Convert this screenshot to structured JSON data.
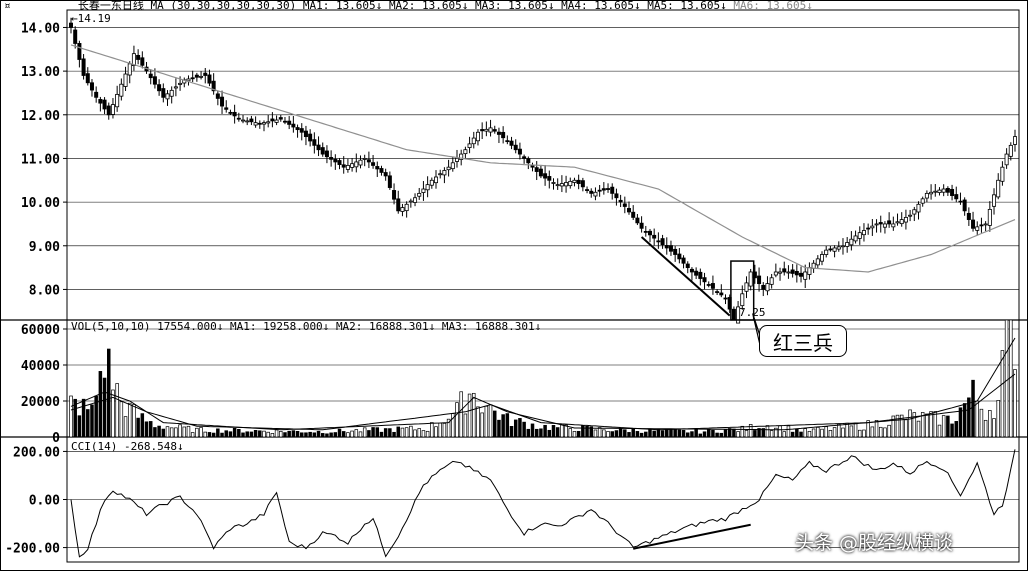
{
  "price_header": {
    "title_symbol": "¤",
    "name": "长春一东",
    "period": "日线",
    "ma_params": "MA (30,30,30,30,30,30)",
    "ma1": "MA1: 13.605↓",
    "ma2": "MA2: 13.605↓",
    "ma3": "MA3: 13.605↓",
    "ma4": "MA4: 13.605↓",
    "ma5": "MA5: 13.605↓",
    "ma6": "MA6: 13.605↓"
  },
  "vol_header": {
    "params": "VOL(5,10,10)",
    "vol": "17554.000↓",
    "ma1": "MA1: 19258.000↓",
    "ma2": "MA2: 16888.301↓",
    "ma3": "MA3: 16888.301↓"
  },
  "cci_header": {
    "params": "CCI(14)",
    "value": "-268.548↓"
  },
  "annotation": {
    "label": "红三兵",
    "high_marker": "←14.19",
    "low_marker": "7.25"
  },
  "watermark": "头条 @股经纵横谈",
  "colors": {
    "axis": "#000000",
    "grid": "#000000",
    "ma_line": "#909090",
    "candle": "#000000"
  },
  "chart_data": [
    {
      "type": "candlestick",
      "panel": "price",
      "ylim": [
        7.3,
        14.4
      ],
      "yticks": [
        "14.00",
        "13.00",
        "12.00",
        "11.00",
        "10.00",
        "9.00",
        "8.00"
      ],
      "ytick_values": [
        14,
        13,
        12,
        11,
        10,
        9,
        8
      ],
      "anchors_close": [
        [
          0,
          14.0
        ],
        [
          3,
          12.9
        ],
        [
          6,
          12.4
        ],
        [
          9,
          12.0
        ],
        [
          12,
          12.7
        ],
        [
          15,
          13.4
        ],
        [
          18,
          13.0
        ],
        [
          22,
          12.4
        ],
        [
          27,
          12.8
        ],
        [
          32,
          12.9
        ],
        [
          36,
          12.2
        ],
        [
          40,
          11.9
        ],
        [
          45,
          11.8
        ],
        [
          50,
          11.9
        ],
        [
          55,
          11.6
        ],
        [
          60,
          11.1
        ],
        [
          65,
          10.8
        ],
        [
          70,
          11.0
        ],
        [
          75,
          10.6
        ],
        [
          78,
          9.8
        ],
        [
          82,
          10.1
        ],
        [
          86,
          10.5
        ],
        [
          90,
          10.8
        ],
        [
          94,
          11.2
        ],
        [
          97,
          11.6
        ],
        [
          100,
          11.7
        ],
        [
          104,
          11.4
        ],
        [
          108,
          11.0
        ],
        [
          112,
          10.6
        ],
        [
          116,
          10.4
        ],
        [
          120,
          10.5
        ],
        [
          124,
          10.2
        ],
        [
          128,
          10.3
        ],
        [
          132,
          9.9
        ],
        [
          136,
          9.4
        ],
        [
          140,
          9.1
        ],
        [
          144,
          8.8
        ],
        [
          148,
          8.4
        ],
        [
          152,
          8.1
        ],
        [
          156,
          7.8
        ],
        [
          158,
          7.3
        ],
        [
          160,
          7.9
        ],
        [
          162,
          8.4
        ],
        [
          165,
          8.0
        ],
        [
          168,
          8.4
        ],
        [
          171,
          8.4
        ],
        [
          174,
          8.3
        ],
        [
          177,
          8.6
        ],
        [
          180,
          8.9
        ],
        [
          184,
          9.0
        ],
        [
          188,
          9.3
        ],
        [
          192,
          9.5
        ],
        [
          196,
          9.5
        ],
        [
          200,
          9.7
        ],
        [
          204,
          10.2
        ],
        [
          208,
          10.3
        ],
        [
          212,
          10.0
        ],
        [
          215,
          9.4
        ],
        [
          218,
          9.5
        ],
        [
          221,
          10.5
        ],
        [
          223,
          11.1
        ],
        [
          225,
          11.5
        ]
      ],
      "ma30_anchors": [
        [
          0,
          13.6
        ],
        [
          20,
          13.0
        ],
        [
          40,
          12.4
        ],
        [
          60,
          11.8
        ],
        [
          80,
          11.2
        ],
        [
          100,
          10.9
        ],
        [
          120,
          10.8
        ],
        [
          140,
          10.3
        ],
        [
          160,
          9.2
        ],
        [
          175,
          8.5
        ],
        [
          190,
          8.4
        ],
        [
          205,
          8.8
        ],
        [
          225,
          9.6
        ]
      ],
      "high_label": 14.19,
      "low_label": 7.25
    },
    {
      "type": "bar",
      "panel": "volume",
      "ylim": [
        0,
        65000
      ],
      "yticks": [
        "60000",
        "40000",
        "20000",
        "0"
      ],
      "ytick_values": [
        60000,
        40000,
        20000,
        0
      ],
      "anchors": [
        [
          0,
          20000
        ],
        [
          5,
          15000
        ],
        [
          8,
          47000
        ],
        [
          9,
          40000
        ],
        [
          12,
          20000
        ],
        [
          16,
          12000
        ],
        [
          20,
          7000
        ],
        [
          30,
          4000
        ],
        [
          60,
          3000
        ],
        [
          85,
          5000
        ],
        [
          92,
          15000
        ],
        [
          95,
          27000
        ],
        [
          98,
          20000
        ],
        [
          104,
          10000
        ],
        [
          112,
          6000
        ],
        [
          130,
          4000
        ],
        [
          150,
          3000
        ],
        [
          160,
          4500
        ],
        [
          165,
          7000
        ],
        [
          175,
          3500
        ],
        [
          190,
          7000
        ],
        [
          200,
          12000
        ],
        [
          210,
          10000
        ],
        [
          215,
          25000
        ],
        [
          218,
          15000
        ],
        [
          221,
          20000
        ],
        [
          223,
          60000
        ],
        [
          225,
          62000
        ]
      ],
      "ma_series": [
        {
          "anchors": [
            [
              0,
              17000
            ],
            [
              8,
              25000
            ],
            [
              14,
              20000
            ],
            [
              22,
              8000
            ],
            [
              50,
              4000
            ],
            [
              90,
              8000
            ],
            [
              96,
              22000
            ],
            [
              104,
              14000
            ],
            [
              120,
              5000
            ],
            [
              170,
              4000
            ],
            [
              200,
              10000
            ],
            [
              216,
              20000
            ],
            [
              225,
              55000
            ]
          ]
        },
        {
          "anchors": [
            [
              0,
              15000
            ],
            [
              10,
              22000
            ],
            [
              18,
              14000
            ],
            [
              30,
              6000
            ],
            [
              60,
              4000
            ],
            [
              94,
              14000
            ],
            [
              100,
              18000
            ],
            [
              112,
              8000
            ],
            [
              140,
              4000
            ],
            [
              190,
              8000
            ],
            [
              214,
              15000
            ],
            [
              225,
              35000
            ]
          ]
        }
      ]
    },
    {
      "type": "line",
      "panel": "cci",
      "series_label": "CCI(14)",
      "ylim": [
        -260,
        260
      ],
      "yticks": [
        "200.00",
        "0.00",
        "-200.00"
      ],
      "ytick_values": [
        200,
        0,
        -200
      ],
      "anchors": [
        [
          0,
          0
        ],
        [
          2,
          -240
        ],
        [
          4,
          -200
        ],
        [
          8,
          0
        ],
        [
          10,
          40
        ],
        [
          14,
          0
        ],
        [
          18,
          -60
        ],
        [
          22,
          -20
        ],
        [
          26,
          10
        ],
        [
          30,
          -60
        ],
        [
          34,
          -200
        ],
        [
          38,
          -120
        ],
        [
          42,
          -100
        ],
        [
          46,
          -60
        ],
        [
          49,
          30
        ],
        [
          52,
          -180
        ],
        [
          56,
          -200
        ],
        [
          60,
          -140
        ],
        [
          63,
          -150
        ],
        [
          66,
          -180
        ],
        [
          70,
          -100
        ],
        [
          72,
          -80
        ],
        [
          75,
          -230
        ],
        [
          78,
          -150
        ],
        [
          84,
          60
        ],
        [
          88,
          120
        ],
        [
          92,
          160
        ],
        [
          96,
          120
        ],
        [
          100,
          80
        ],
        [
          104,
          -40
        ],
        [
          108,
          -140
        ],
        [
          112,
          -100
        ],
        [
          116,
          -110
        ],
        [
          120,
          -80
        ],
        [
          124,
          -40
        ],
        [
          128,
          -100
        ],
        [
          134,
          -200
        ],
        [
          140,
          -160
        ],
        [
          146,
          -120
        ],
        [
          152,
          -90
        ],
        [
          156,
          -80
        ],
        [
          160,
          -40
        ],
        [
          164,
          0
        ],
        [
          168,
          100
        ],
        [
          172,
          80
        ],
        [
          176,
          150
        ],
        [
          180,
          120
        ],
        [
          186,
          180
        ],
        [
          192,
          120
        ],
        [
          196,
          150
        ],
        [
          200,
          110
        ],
        [
          204,
          160
        ],
        [
          208,
          130
        ],
        [
          212,
          20
        ],
        [
          216,
          150
        ],
        [
          220,
          -60
        ],
        [
          222,
          -20
        ],
        [
          224,
          120
        ],
        [
          225,
          200
        ]
      ]
    }
  ]
}
